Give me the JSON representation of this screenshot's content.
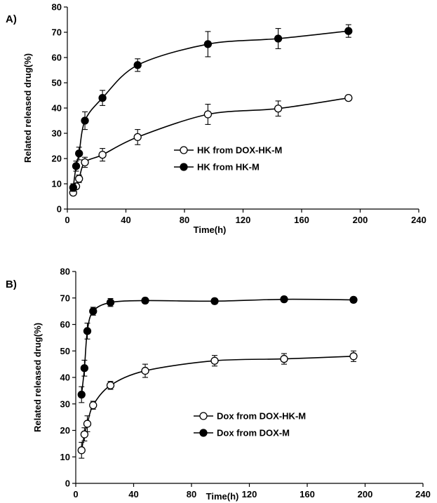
{
  "chart_data": [
    {
      "type": "scatter",
      "panel_label": "A)",
      "xlabel": "Time(h)",
      "ylabel": "Related released drug(%)",
      "xlim": [
        0,
        240
      ],
      "ylim": [
        0,
        80
      ],
      "xticks": [
        0,
        40,
        80,
        120,
        160,
        200,
        240
      ],
      "yticks": [
        0,
        10,
        20,
        30,
        40,
        50,
        60,
        70,
        80
      ],
      "grid": false,
      "legend_position": "center",
      "series": [
        {
          "name": "HK from DOX-HK-M",
          "marker": "open-circle",
          "x": [
            4,
            6,
            8,
            12,
            24,
            48,
            96,
            144,
            192
          ],
          "y": [
            6.5,
            9,
            12,
            18.5,
            21.5,
            28.5,
            37.5,
            39.8,
            44
          ],
          "err": [
            1,
            1,
            1.5,
            2,
            2.5,
            3,
            4,
            3,
            1
          ]
        },
        {
          "name": "HK from HK-M",
          "marker": "filled-circle",
          "x": [
            4,
            6,
            8,
            12,
            24,
            48,
            96,
            144,
            192
          ],
          "y": [
            8.5,
            17,
            22,
            35,
            44,
            57,
            65.3,
            67.5,
            70.5
          ],
          "err": [
            1.5,
            2,
            2.5,
            3.5,
            3,
            2.5,
            5,
            4,
            2.5
          ]
        }
      ]
    },
    {
      "type": "scatter",
      "panel_label": "B)",
      "xlabel": "Time(h)",
      "ylabel": "Related released drug(%)",
      "xlim": [
        0,
        240
      ],
      "ylim": [
        0,
        80
      ],
      "xticks": [
        0,
        40,
        80,
        120,
        160,
        200,
        240
      ],
      "yticks": [
        0,
        10,
        20,
        30,
        40,
        50,
        60,
        70,
        80
      ],
      "grid": false,
      "legend_position": "bottom-center",
      "series": [
        {
          "name": "Dox from DOX-HK-M",
          "marker": "open-circle",
          "x": [
            4,
            6,
            8,
            12,
            24,
            48,
            96,
            144,
            192
          ],
          "y": [
            12.5,
            18.5,
            22.5,
            29.5,
            37,
            42.5,
            46.3,
            47,
            48
          ],
          "err": [
            3,
            2.5,
            3,
            1.5,
            1.5,
            2.5,
            2,
            2,
            2
          ]
        },
        {
          "name": "Dox from DOX-M",
          "marker": "filled-circle",
          "x": [
            4,
            6,
            8,
            12,
            24,
            48,
            96,
            144,
            192
          ],
          "y": [
            33.5,
            43.5,
            57.5,
            65,
            68.3,
            69,
            68.8,
            69.5,
            69.3
          ],
          "err": [
            3,
            3,
            3,
            1.5,
            1.5,
            1,
            1,
            1,
            1
          ]
        }
      ]
    }
  ]
}
